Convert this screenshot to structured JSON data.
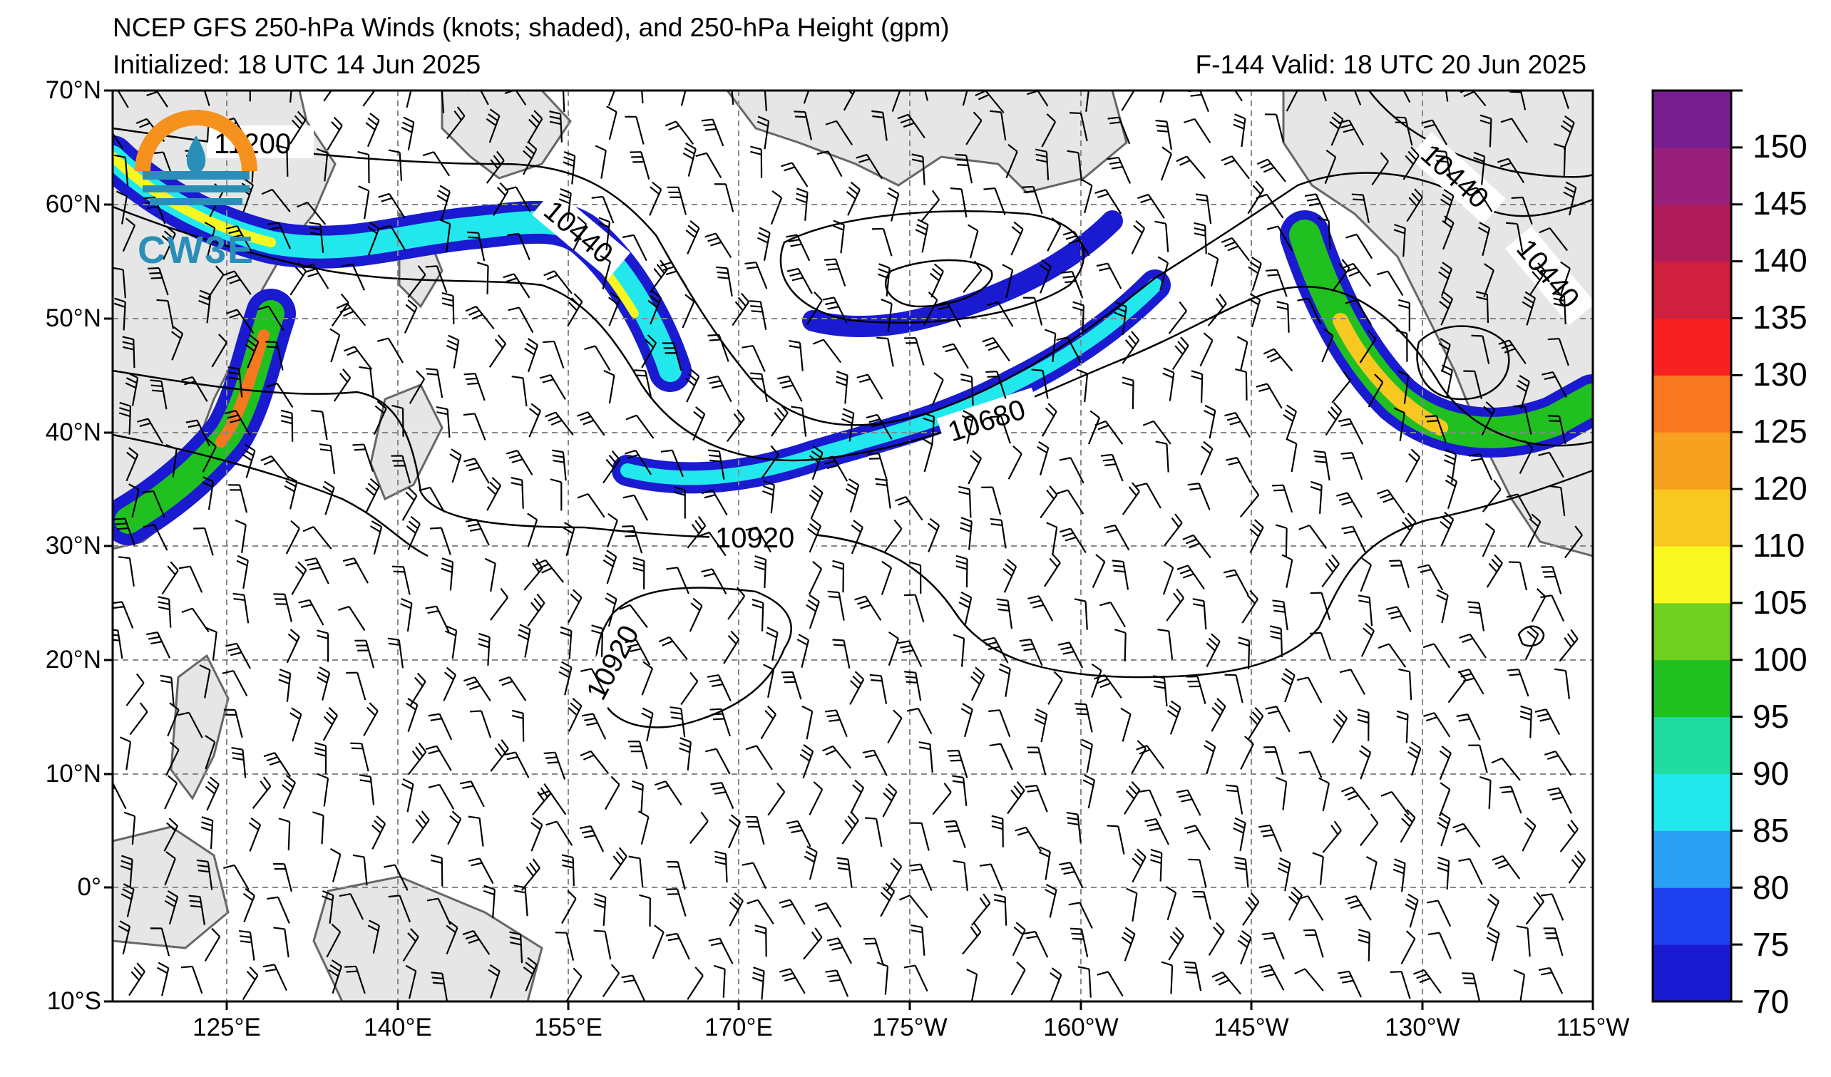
{
  "title": "NCEP GFS 250-hPa Winds (knots; shaded), and 250-hPa Height (gpm)",
  "initialized": "Initialized: 18 UTC 14 Jun 2025",
  "valid": "F-144  Valid: 18 UTC 20 Jun 2025",
  "logo_text": "CW3E",
  "lat_labels": [
    "70°N",
    "60°N",
    "50°N",
    "40°N",
    "30°N",
    "20°N",
    "10°N",
    "0°",
    "10°S"
  ],
  "lon_labels": [
    "125°E",
    "140°E",
    "155°E",
    "170°E",
    "175°W",
    "160°W",
    "145°W",
    "130°W",
    "115°W"
  ],
  "colorbar": {
    "labels": [
      "70",
      "75",
      "80",
      "85",
      "90",
      "95",
      "100",
      "105",
      "110",
      "120",
      "125",
      "130",
      "135",
      "140",
      "145",
      "150"
    ],
    "colors": [
      "#1a1ad0",
      "#1e40f0",
      "#2aa0f2",
      "#22e8ee",
      "#20dca0",
      "#20c020",
      "#70d020",
      "#f8f820",
      "#f8c820",
      "#f8a020",
      "#f87820",
      "#f82020",
      "#d02040",
      "#b01c5a",
      "#98207a",
      "#781e90"
    ]
  },
  "contour_labels": [
    "11200",
    "10440",
    "10440",
    "10440",
    "10680",
    "10920",
    "10920"
  ]
}
